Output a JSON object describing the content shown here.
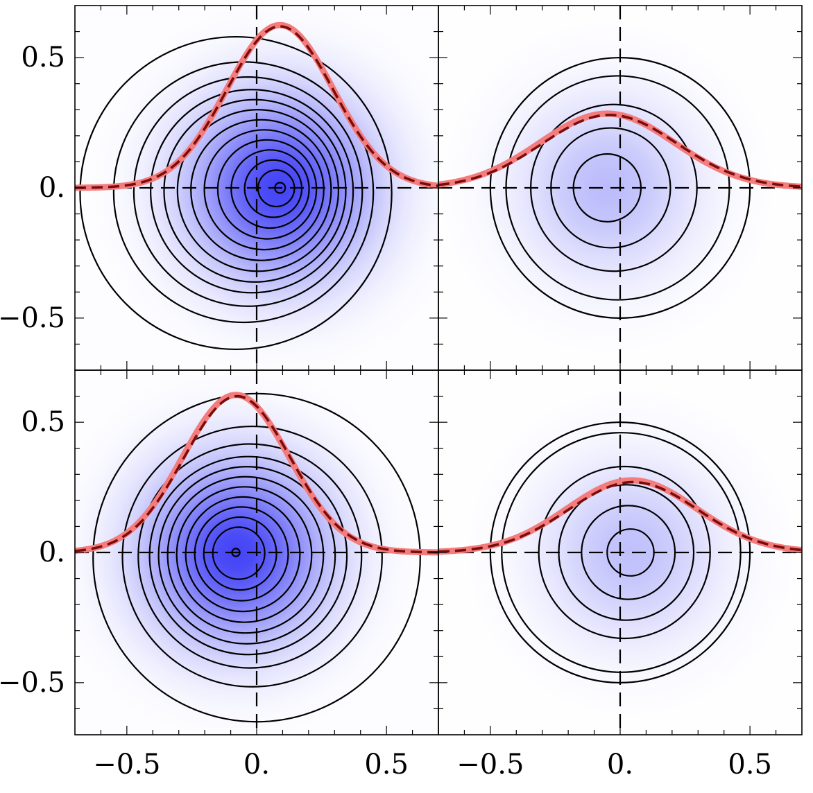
{
  "chart_data": {
    "type": "contour",
    "layout": {
      "rows": 2,
      "cols": 2
    },
    "xlim": [
      -0.7,
      0.7
    ],
    "ylim": [
      -0.7,
      0.7
    ],
    "x_ticks": [
      {
        "value": -0.5,
        "label": "−0.5"
      },
      {
        "value": 0,
        "label": "0."
      },
      {
        "value": 0.5,
        "label": "0.5"
      }
    ],
    "y_ticks": [
      {
        "value": 0.5,
        "label": "0.5"
      },
      {
        "value": 0,
        "label": "0."
      },
      {
        "value": -0.5,
        "label": "−0.5"
      }
    ],
    "colors": {
      "density": "#3a3af5",
      "band": "#f47c7c",
      "curve": "#7a0c0c",
      "contour": "#000000",
      "background": "#ffffff"
    },
    "panels": [
      {
        "id": "top-left",
        "density_peak": 0.95,
        "blob_center": [
          0.09,
          0.0
        ],
        "blob_sigma": 0.24,
        "contour_center_start": [
          -0.08,
          -0.02
        ],
        "contour_center_end": [
          0.09,
          0.0
        ],
        "contour_radii": [
          0.02,
          0.07,
          0.11,
          0.15,
          0.19,
          0.23,
          0.27,
          0.31,
          0.35,
          0.39,
          0.44,
          0.5,
          0.6
        ],
        "profile": {
          "center": 0.09,
          "height": 0.62,
          "width": 0.205,
          "band_center": 0.09,
          "band_height": 0.625,
          "band_width": 0.205
        }
      },
      {
        "id": "top-right",
        "density_peak": 0.34,
        "blob_center": [
          -0.05,
          0.0
        ],
        "blob_sigma": 0.23,
        "contour_center_start": [
          0.0,
          0.0
        ],
        "contour_center_end": [
          -0.05,
          0.0
        ],
        "contour_radii": [
          0.13,
          0.23,
          0.32,
          0.43,
          0.5
        ],
        "profile": {
          "center": -0.04,
          "height": 0.28,
          "width": 0.26,
          "band_center": -0.05,
          "band_height": 0.285,
          "band_width": 0.26
        }
      },
      {
        "id": "bottom-left",
        "density_peak": 0.95,
        "blob_center": [
          -0.08,
          0.0
        ],
        "blob_sigma": 0.24,
        "contour_center_start": [
          0.0,
          -0.02
        ],
        "contour_center_end": [
          -0.08,
          0.0
        ],
        "contour_radii": [
          0.015,
          0.1,
          0.14,
          0.18,
          0.22,
          0.26,
          0.3,
          0.34,
          0.38,
          0.43,
          0.5,
          0.63
        ],
        "profile": {
          "center": -0.075,
          "height": 0.6,
          "width": 0.205,
          "band_center": -0.08,
          "band_height": 0.605,
          "band_width": 0.205
        }
      },
      {
        "id": "bottom-right",
        "density_peak": 0.32,
        "blob_center": [
          0.04,
          0.0
        ],
        "blob_sigma": 0.23,
        "contour_center_start": [
          0.0,
          0.0
        ],
        "contour_center_end": [
          0.04,
          0.0
        ],
        "contour_radii": [
          0.09,
          0.18,
          0.26,
          0.33,
          0.46,
          0.5
        ],
        "profile": {
          "center": 0.05,
          "height": 0.27,
          "width": 0.25,
          "band_center": 0.045,
          "band_height": 0.277,
          "band_width": 0.25
        }
      }
    ]
  }
}
